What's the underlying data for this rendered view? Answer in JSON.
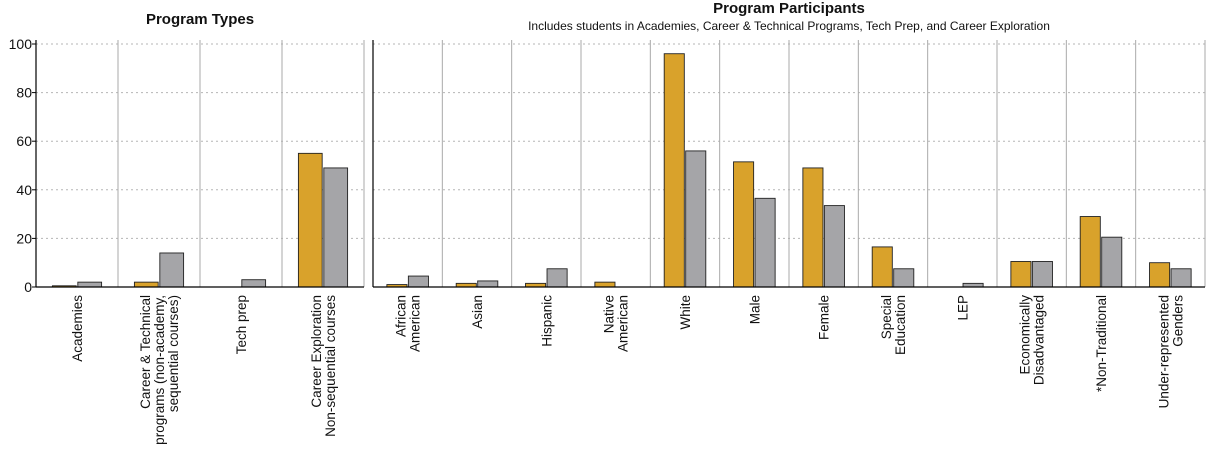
{
  "colors": {
    "series_a": "#d9a22b",
    "series_b": "#a5a5a8",
    "bar_stroke": "#222222",
    "grid": "#b5b5b5",
    "separator": "#aaaaaa",
    "axis": "#000000"
  },
  "chart_data": [
    {
      "type": "bar",
      "title": "Program Types",
      "subtitle": "",
      "xlabel": "",
      "ylabel": "",
      "ylim": [
        0,
        100
      ],
      "yticks": [
        "0",
        "20",
        "40",
        "60",
        "80",
        "100"
      ],
      "grid": true,
      "legend": "none",
      "categories": [
        [
          "Academies"
        ],
        [
          "Career & Technical",
          "programs (non-academy,",
          "sequential courses)"
        ],
        [
          "Tech prep"
        ],
        [
          "Career Exploration",
          "Non-sequential courses"
        ]
      ],
      "series": [
        {
          "values": [
            0.5,
            2,
            0,
            55
          ]
        },
        {
          "values": [
            2,
            14,
            3,
            49
          ]
        }
      ]
    },
    {
      "type": "bar",
      "title": "Program Participants",
      "subtitle": "Includes students in Academies, Career & Technical Programs, Tech Prep, and Career Exploration",
      "xlabel": "",
      "ylabel": "",
      "ylim": [
        0,
        100
      ],
      "grid": true,
      "legend": "none",
      "categories": [
        [
          "African",
          "American"
        ],
        [
          "Asian"
        ],
        [
          "Hispanic"
        ],
        [
          "Native",
          "American"
        ],
        [
          "White"
        ],
        [
          "Male"
        ],
        [
          "Female"
        ],
        [
          "Special",
          "Education"
        ],
        [
          "LEP"
        ],
        [
          "Economically",
          "Disadvantaged"
        ],
        [
          "*Non-Traditional"
        ],
        [
          "Under-represented",
          "Genders"
        ]
      ],
      "series": [
        {
          "values": [
            1,
            1.5,
            1.5,
            2,
            96,
            51.5,
            49,
            16.5,
            0,
            10.5,
            29,
            10
          ]
        },
        {
          "values": [
            4.5,
            2.5,
            7.5,
            0,
            56,
            36.5,
            33.5,
            7.5,
            1.5,
            10.5,
            20.5,
            7.5
          ]
        }
      ]
    }
  ]
}
